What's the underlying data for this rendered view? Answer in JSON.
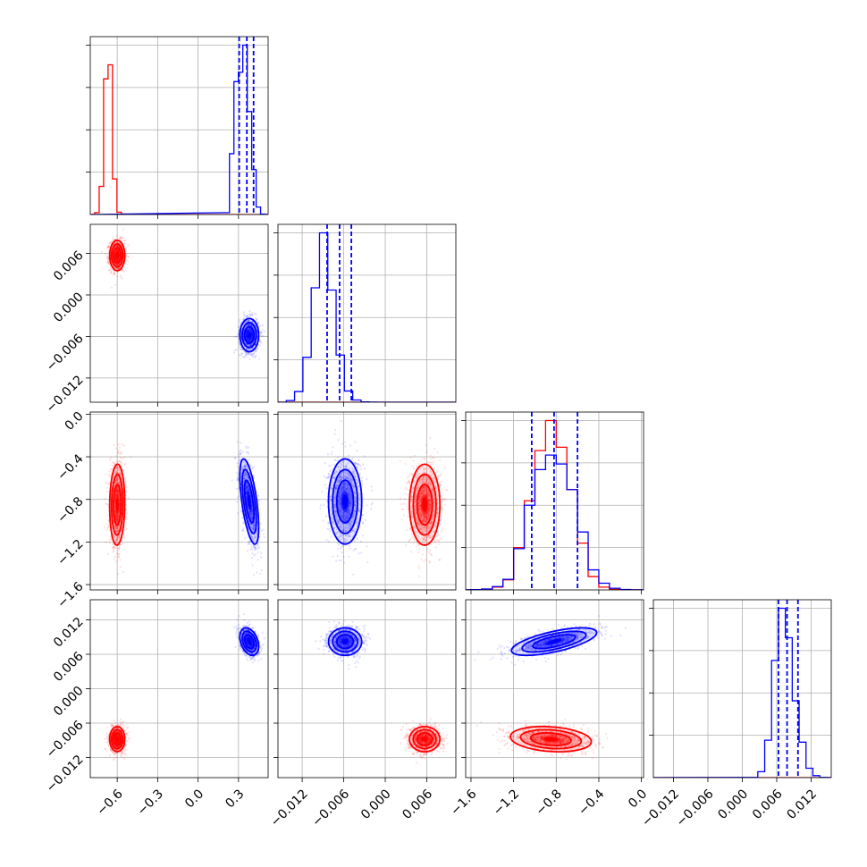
{
  "chart_data": {
    "type": "corner",
    "layout": "lower-triangle 4x4 grid; diagonal panels are 1-D histograms, off-diagonal panels are 2-D sample scatters with density contours",
    "title": "",
    "colors": {
      "red": "#ff0000",
      "blue": "#0000ff"
    },
    "parameters": [
      {
        "label": "",
        "range": [
          -0.8,
          0.52
        ],
        "ticks": [
          -0.6,
          -0.3,
          0.0,
          0.3
        ],
        "tick_labels": [
          "−0.6",
          "−0.3",
          "0.0",
          "0.3"
        ]
      },
      {
        "label": "",
        "range": [
          -0.0155,
          0.0102
        ],
        "ticks": [
          -0.012,
          -0.006,
          0.0,
          0.006
        ],
        "tick_labels": [
          "−0.012",
          "−0.006",
          "0.000",
          "0.006"
        ]
      },
      {
        "label": "",
        "range": [
          -1.65,
          0.02
        ],
        "ticks": [
          -1.6,
          -1.2,
          -0.8,
          -0.4,
          0.0
        ],
        "tick_labels": [
          "−1.6",
          "−1.2",
          "−0.8",
          "−0.4",
          "0.0"
        ]
      },
      {
        "label": "",
        "range": [
          -0.0155,
          0.0155
        ],
        "ticks": [
          -0.012,
          -0.006,
          0.0,
          0.006,
          0.012
        ],
        "tick_labels": [
          "−0.012",
          "−0.006",
          "0.000",
          "0.006",
          "0.012"
        ]
      }
    ],
    "series": [
      {
        "color": "#ff0000",
        "mean": [
          -0.6,
          0.0057,
          -0.85,
          -0.0088
        ],
        "sd": [
          0.028,
          0.0011,
          0.19,
          0.0011
        ],
        "correlation": {
          "0-2": 0.05,
          "1-3": 0.0,
          "2-3": -0.2
        },
        "histograms": [
          {
            "bins": [
              -0.8,
              -0.767,
              -0.734,
              -0.701,
              -0.668,
              -0.635,
              -0.602,
              -0.569,
              -0.536,
              -0.503,
              -0.47,
              -0.437
            ],
            "counts": [
              1,
              20,
              300,
              1450,
              1600,
              380,
              25,
              4,
              2,
              1,
              0
            ]
          },
          {
            "bins": [
              -0.0155,
              -0.0143,
              -0.0131,
              -0.0119,
              -0.0107,
              -0.0095,
              -0.0083,
              -0.0071,
              -0.0059,
              -0.0047,
              -0.0035,
              -0.0023,
              -0.0011,
              0.0001,
              0.0013,
              0.0025,
              0.0037,
              0.0049,
              0.0061,
              0.0073,
              0.0085,
              0.0097
            ],
            "counts": [
              0,
              0,
              0,
              0,
              0,
              0,
              0,
              0,
              0,
              0,
              0,
              0,
              0,
              0,
              0,
              0,
              0,
              0,
              0,
              0,
              0
            ]
          },
          {
            "bins": [
              -1.6,
              -1.5,
              -1.4,
              -1.3,
              -1.2,
              -1.1,
              -1.0,
              -0.9,
              -0.8,
              -0.7,
              -0.6,
              -0.5,
              -0.4,
              -0.3,
              -0.2,
              -0.1,
              0.0
            ],
            "counts": [
              3,
              8,
              25,
              90,
              380,
              800,
              1250,
              1520,
              1280,
              900,
              420,
              120,
              25,
              6,
              2,
              1
            ]
          },
          {
            "bins": [
              -0.0155,
              -0.0143,
              -0.0131,
              -0.0119,
              -0.0107,
              -0.0095,
              -0.0083,
              -0.0071,
              -0.0059,
              -0.0047,
              -0.0035,
              -0.0023,
              -0.0011,
              0.0001,
              0.0013,
              0.0025,
              0.0037,
              0.0049,
              0.0061,
              0.0073,
              0.0085,
              0.0097,
              0.0109,
              0.0121,
              0.0133,
              0.0145,
              0.0157
            ],
            "counts": [
              0,
              0,
              0,
              0,
              0,
              0,
              0,
              0,
              0,
              0,
              0,
              0,
              0,
              0,
              0,
              0,
              0,
              0,
              0,
              0,
              0,
              0,
              0,
              0,
              0,
              0
            ]
          }
        ]
      },
      {
        "color": "#0000ff",
        "mean": [
          0.38,
          -0.0058,
          -0.82,
          0.0082
        ],
        "sd": [
          0.035,
          0.0012,
          0.2,
          0.0012
        ],
        "correlation": {
          "0-2": -0.6,
          "0-3": -0.35,
          "1-2": 0.0,
          "1-3": 0.0,
          "2-3": 0.65
        },
        "quantiles": [
          [
            0.305,
            0.362,
            0.412
          ],
          [
            -0.0084,
            -0.0066,
            -0.0049
          ],
          [
            -1.03,
            -0.82,
            -0.6
          ],
          [
            0.0063,
            0.0078,
            0.0097
          ]
        ],
        "histograms": [
          {
            "bins": [
              0.2,
              0.233,
              0.266,
              0.299,
              0.332,
              0.365,
              0.398,
              0.431,
              0.464,
              0.497,
              0.52
            ],
            "counts": [
              20,
              650,
              1420,
              1520,
              1810,
              1100,
              480,
              80,
              5,
              1
            ]
          },
          {
            "bins": [
              -0.0155,
              -0.0143,
              -0.0131,
              -0.0119,
              -0.0107,
              -0.0095,
              -0.0083,
              -0.0071,
              -0.0059,
              -0.0047,
              -0.0035,
              -0.0023,
              -0.0011,
              0.0001
            ],
            "counts": [
              0,
              15,
              95,
              400,
              1020,
              1510,
              1000,
              420,
              100,
              20,
              3,
              1,
              0
            ]
          },
          {
            "bins": [
              -1.6,
              -1.5,
              -1.4,
              -1.3,
              -1.2,
              -1.1,
              -1.0,
              -0.9,
              -0.8,
              -0.7,
              -0.6,
              -0.5,
              -0.4,
              -0.3,
              -0.2,
              -0.1,
              0.0
            ],
            "counts": [
              3,
              8,
              30,
              95,
              370,
              760,
              1080,
              1210,
              1130,
              900,
              520,
              180,
              60,
              15,
              4,
              1
            ]
          },
          {
            "bins": [
              0.0015,
              0.0027,
              0.0039,
              0.0051,
              0.0063,
              0.0075,
              0.0087,
              0.0099,
              0.0111,
              0.0123,
              0.0135,
              0.0147
            ],
            "counts": [
              2,
              60,
              380,
              1190,
              1720,
              1420,
              780,
              360,
              95,
              20,
              2
            ]
          }
        ]
      }
    ],
    "grid": true,
    "legend": "none"
  }
}
